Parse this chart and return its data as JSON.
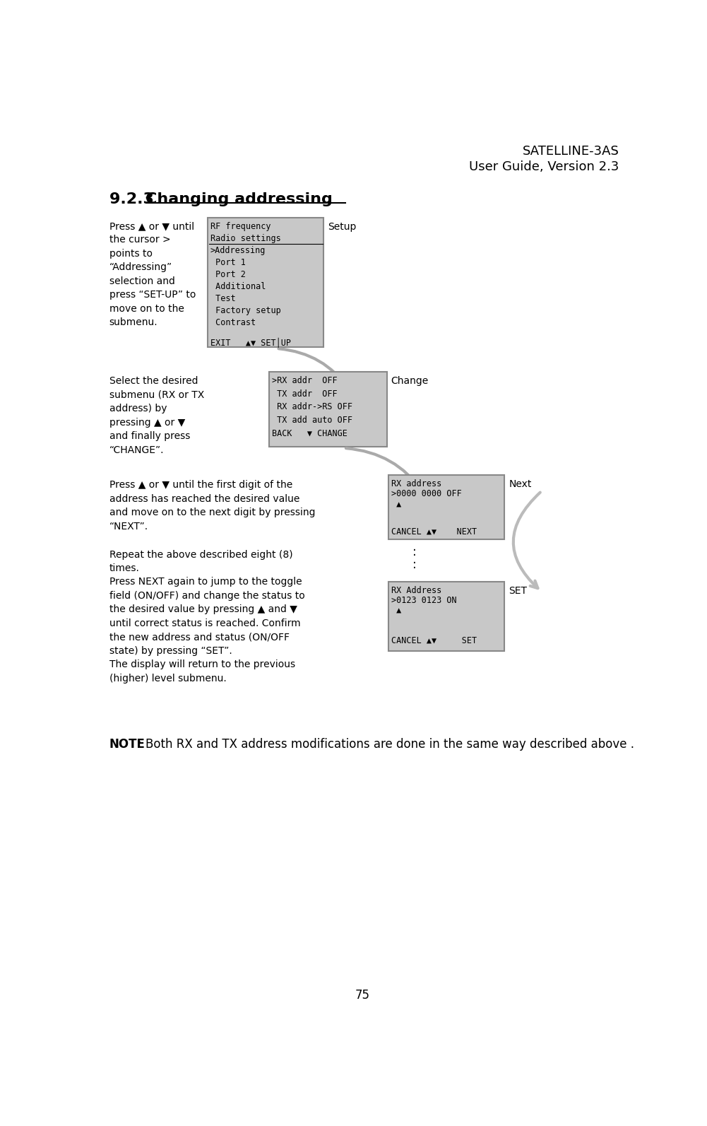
{
  "title_line1": "SATELLINE-3AS",
  "title_line2": "User Guide, Version 2.3",
  "section": "9.2.3  ",
  "section_title": "Changing addressing",
  "page_number": "75",
  "bg_color": "#ffffff",
  "screen_bg": "#c8c8c8",
  "screen_border": "#888888",
  "text1": "Press ▲ or ▼ until\nthe cursor >\npoints to\n“Addressing”\nselection and\npress “SET-UP” to\nmove on to the\nsubmenu.",
  "text2": "Select the desired\nsubmenu (RX or TX\naddress) by\npressing ▲ or ▼\nand finally press\n“CHANGE”.",
  "text3": "Press ▲ or ▼ until the first digit of the\naddress has reached the desired value\nand move on to the next digit by pressing\n“NEXT”.",
  "text4": "Repeat the above described eight (8)\ntimes.",
  "text5": "Press NEXT again to jump to the toggle\nfield (ON/OFF) and change the status to\nthe desired value by pressing ▲ and ▼\nuntil correct status is reached. Confirm\nthe new address and status (ON/OFF\nstate) by pressing “SET”.\nThe display will return to the previous\n(higher) level submenu.",
  "note_bold": "NOTE",
  "note_rest": ": Both RX and TX address modifications are done in the same way described above .",
  "screen1_lines": [
    "RF frequency",
    "Radio settings",
    ">Addressing",
    " Port 1",
    " Port 2",
    " Additional",
    " Test",
    " Factory setup",
    " Contrast"
  ],
  "screen1_bottom": "EXIT   ▲▼ SET│UP",
  "screen1_label": "Setup",
  "screen2_lines": [
    ">RX addr  OFF",
    " TX addr  OFF",
    " RX addr->RS OFF",
    " TX add auto OFF",
    "BACK   ▼ CHANGE"
  ],
  "screen2_label": "Change",
  "screen3_lines": [
    "RX address",
    ">0000 0000 OFF",
    " ▲",
    "",
    "CANCEL ▲▼    NEXT"
  ],
  "screen3_label": "Next",
  "screen4_lines": [
    "RX Address",
    ">0123 0123 ON",
    " ▲",
    "",
    "CANCEL ▲▼     SET"
  ],
  "screen4_label": "SET"
}
